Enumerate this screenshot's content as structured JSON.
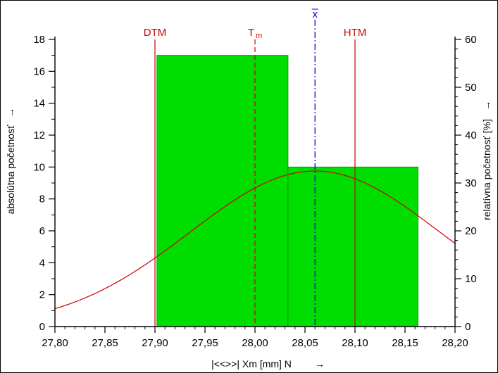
{
  "chart_data": {
    "type": "bar",
    "title": "",
    "xlabel": "|<<>>|  Xm [mm]  N",
    "xlabel_arrow": "→",
    "ylabel": "absolútna početnosť",
    "ylabel_arrow": "→",
    "y2label": "relatívna početnosť  [%]",
    "y2label_arrow": "→",
    "xlim": [
      27.8,
      28.2
    ],
    "ylim": [
      0,
      18
    ],
    "y2lim": [
      0,
      60
    ],
    "x_ticks": [
      "27,80",
      "27,85",
      "27,90",
      "27,95",
      "28,00",
      "28,05",
      "28,10",
      "28,15",
      "28,20"
    ],
    "y_ticks": [
      "0",
      "2",
      "4",
      "6",
      "8",
      "10",
      "12",
      "14",
      "16",
      "18"
    ],
    "y2_ticks": [
      "0",
      "10",
      "20",
      "30",
      "40",
      "50",
      "60"
    ],
    "bins": [
      {
        "x0": 27.902,
        "x1": 28.033,
        "count": 17
      },
      {
        "x0": 28.033,
        "x1": 28.163,
        "count": 10
      }
    ],
    "normal_curve": {
      "mean": 28.06,
      "sd": 0.125,
      "peak_count": 9.75
    },
    "markers": [
      {
        "id": "dtm",
        "label": "DTM",
        "x": 27.9,
        "style": "solid",
        "color": "#cc0000"
      },
      {
        "id": "tm",
        "label": "T",
        "sub": "m",
        "x": 28.0,
        "style": "dashed",
        "color": "#cc0000"
      },
      {
        "id": "mean",
        "label": "x",
        "x": 28.06,
        "style": "dashdot",
        "color": "#0000cc"
      },
      {
        "id": "htm",
        "label": "HTM",
        "x": 28.1,
        "style": "solid",
        "color": "#cc0000"
      }
    ],
    "colors": {
      "bar_fill": "#00dd00",
      "bar_edge": "#00a000",
      "curve": "#cc0000",
      "axis": "#000000"
    },
    "grid": false,
    "legend": "none"
  }
}
